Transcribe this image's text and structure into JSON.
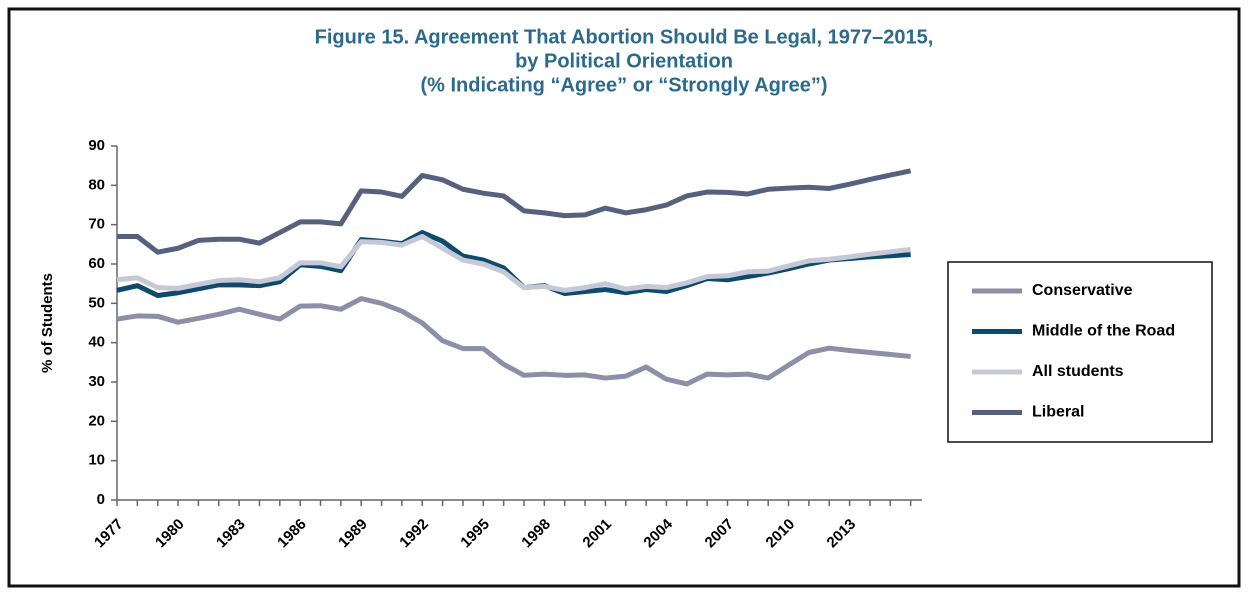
{
  "chart_data": {
    "type": "line",
    "title": [
      "Figure 15. Agreement That Abortion Should Be Legal, 1977–2015,",
      "by Political Orientation",
      "(% Indicating “Agree” or “Strongly Agree”)"
    ],
    "y_label": "% of Students",
    "categories": [
      "1977",
      null,
      null,
      "1980",
      null,
      null,
      "1983",
      null,
      null,
      "1986",
      null,
      null,
      "1989",
      null,
      null,
      "1992",
      null,
      null,
      "1995",
      null,
      null,
      "1998",
      null,
      null,
      "2001",
      null,
      null,
      "2004",
      null,
      null,
      "2007",
      null,
      null,
      "2010",
      null,
      null,
      "2013",
      null,
      null,
      null
    ],
    "ylim": [
      0,
      90
    ],
    "yticks": [
      0,
      10,
      20,
      30,
      40,
      50,
      60,
      70,
      80,
      90
    ],
    "legend": "right",
    "series": [
      {
        "name": "Conservative",
        "color": "#8b8fa8",
        "values": [
          46,
          46.8,
          46.7,
          45.2,
          46.2,
          47.2,
          48.5,
          47.2,
          46,
          49.3,
          49.4,
          48.5,
          51.2,
          50,
          48,
          45,
          40.5,
          38.5,
          38.5,
          34.5,
          31.7,
          32,
          31.7,
          31.8,
          31,
          31.5,
          33.8,
          30.7,
          29.5,
          32,
          31.8,
          32,
          31,
          34.3,
          37.5,
          38.6,
          38,
          37.5,
          37,
          36.5
        ]
      },
      {
        "name": "Middle of the Road",
        "color": "#0e4a6b",
        "values": [
          53.3,
          54.5,
          52,
          52.7,
          53.7,
          54.7,
          54.7,
          54.5,
          55.5,
          59.8,
          59.4,
          58.3,
          66.2,
          65.8,
          65.2,
          68,
          65.8,
          62,
          61,
          59,
          54,
          54.5,
          52.5,
          53,
          53.5,
          52.7,
          53.5,
          53,
          54.5,
          56.3,
          56,
          56.8,
          57.7,
          58.8,
          60,
          61,
          61.4,
          61.8,
          62.1,
          62.4
        ]
      },
      {
        "name": "All students",
        "color": "#c5c8d6",
        "values": [
          56,
          56.5,
          54,
          53.8,
          54.8,
          55.8,
          56,
          55.5,
          56.5,
          60.3,
          60.3,
          59.3,
          65.7,
          65.5,
          64.8,
          67,
          64,
          61,
          60,
          58,
          54,
          54.3,
          53.3,
          54,
          55,
          53.6,
          54.3,
          54,
          55.2,
          56.8,
          57,
          58,
          58.2,
          59.5,
          60.8,
          61.2,
          61.8,
          62.5,
          63.1,
          63.7
        ]
      },
      {
        "name": "Liberal",
        "color": "#56617e",
        "values": [
          67,
          67,
          63,
          64,
          66,
          66.3,
          66.3,
          65.3,
          68,
          70.7,
          70.7,
          70.2,
          78.6,
          78.3,
          77.2,
          82.5,
          81.4,
          79,
          78,
          77.3,
          73.5,
          73,
          72.3,
          72.5,
          74.2,
          73,
          73.8,
          75,
          77.3,
          78.3,
          78.2,
          77.8,
          79,
          79.3,
          79.5,
          79.2,
          80.3,
          81.5,
          82.6,
          83.7
        ]
      }
    ]
  }
}
